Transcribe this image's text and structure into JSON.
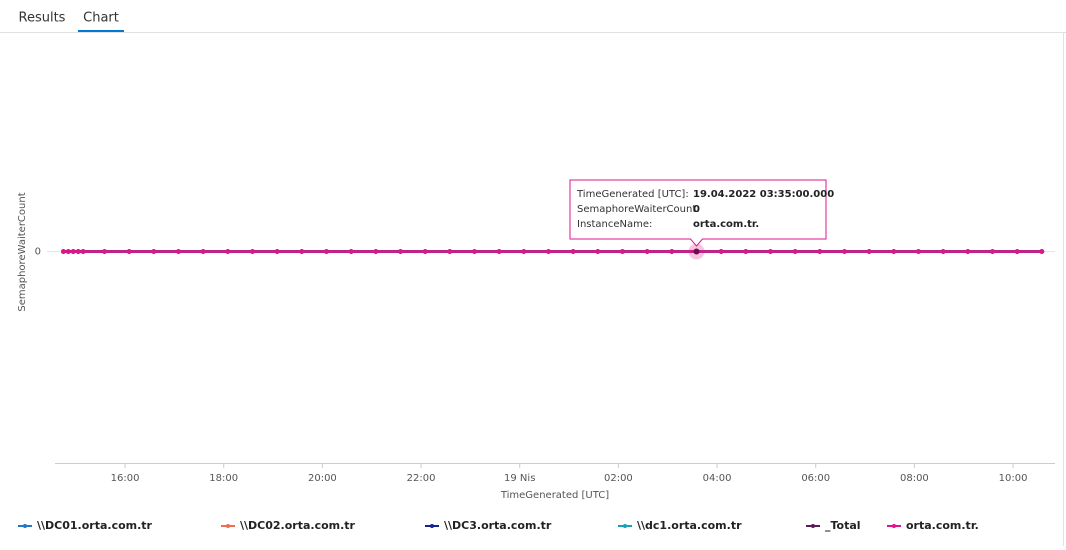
{
  "tabs": [
    "Results",
    "Chart"
  ],
  "chart_data": {
    "type": "line",
    "y_label": "SemaphoreWaiterCount",
    "x_label": "TimeGenerated [UTC]",
    "x": [
      14.75,
      14.85,
      14.95,
      15.05,
      15.15,
      15.583,
      16.083,
      16.583,
      17.083,
      17.583,
      18.083,
      18.583,
      19.083,
      19.583,
      20.083,
      20.583,
      21.083,
      21.583,
      22.083,
      22.583,
      23.083,
      23.583,
      24.083,
      24.583,
      25.083,
      25.583,
      26.083,
      26.583,
      27.083,
      27.583,
      28.083,
      28.583,
      29.083,
      29.583,
      30.083,
      30.583,
      31.083,
      31.583,
      32.083,
      32.583,
      33.083,
      33.583,
      34.083,
      34.583
    ],
    "xlim": [
      14.58,
      34.85
    ],
    "xticks": [
      {
        "value": 16,
        "label": "16:00"
      },
      {
        "value": 18,
        "label": "18:00"
      },
      {
        "value": 20,
        "label": "20:00"
      },
      {
        "value": 22,
        "label": "22:00"
      },
      {
        "value": 24,
        "label": "19 Nis"
      },
      {
        "value": 26,
        "label": "02:00"
      },
      {
        "value": 28,
        "label": "04:00"
      },
      {
        "value": 30,
        "label": "06:00"
      },
      {
        "value": 32,
        "label": "08:00"
      },
      {
        "value": 34,
        "label": "10:00"
      }
    ],
    "ylim": [
      -1,
      1
    ],
    "yticks": [
      0
    ],
    "series": [
      {
        "name": "\\\\DC01.orta.com.tr",
        "color": "#1f78c8",
        "values": [
          0,
          0,
          0,
          0,
          0,
          0,
          0,
          0,
          0,
          0,
          0,
          0,
          0,
          0,
          0,
          0,
          0,
          0,
          0,
          0,
          0,
          0,
          0,
          0,
          0,
          0,
          0,
          0,
          0,
          0,
          0,
          0,
          0,
          0,
          0,
          0,
          0,
          0,
          0,
          0,
          0,
          0,
          0,
          0
        ]
      },
      {
        "name": "\\\\DC02.orta.com.tr",
        "color": "#f06b50",
        "values": [
          0,
          0,
          0,
          0,
          0,
          0,
          0,
          0,
          0,
          0,
          0,
          0,
          0,
          0,
          0,
          0,
          0,
          0,
          0,
          0,
          0,
          0,
          0,
          0,
          0,
          0,
          0,
          0,
          0,
          0,
          0,
          0,
          0,
          0,
          0,
          0,
          0,
          0,
          0,
          0,
          0,
          0,
          0,
          0
        ]
      },
      {
        "name": "\\\\DC3.orta.com.tr",
        "color": "#12238a",
        "values": [
          0,
          0,
          0,
          0,
          0,
          0,
          0,
          0,
          0,
          0,
          0,
          0,
          0,
          0,
          0,
          0,
          0,
          0,
          0,
          0,
          0,
          0,
          0,
          0,
          0,
          0,
          0,
          0,
          0,
          0,
          0,
          0,
          0,
          0,
          0,
          0,
          0,
          0,
          0,
          0,
          0,
          0,
          0,
          0
        ]
      },
      {
        "name": "\\\\dc1.orta.com.tr",
        "color": "#13a3b5",
        "values": [
          0,
          0,
          0,
          0,
          0,
          0,
          0,
          0,
          0,
          0,
          0,
          0,
          0,
          0,
          0,
          0,
          0,
          0,
          0,
          0,
          0,
          0,
          0,
          0,
          0,
          0,
          0,
          0,
          0,
          0,
          0,
          0,
          0,
          0,
          0,
          0,
          0,
          0,
          0,
          0,
          0,
          0,
          0,
          0
        ]
      },
      {
        "name": "_Total",
        "color": "#5c1a5c",
        "values": [
          0,
          0,
          0,
          0,
          0,
          0,
          0,
          0,
          0,
          0,
          0,
          0,
          0,
          0,
          0,
          0,
          0,
          0,
          0,
          0,
          0,
          0,
          0,
          0,
          0,
          0,
          0,
          0,
          0,
          0,
          0,
          0,
          0,
          0,
          0,
          0,
          0,
          0,
          0,
          0,
          0,
          0,
          0,
          0
        ]
      },
      {
        "name": "orta.com.tr.",
        "color": "#e0148c",
        "values": [
          0,
          0,
          0,
          0,
          0,
          0,
          0,
          0,
          0,
          0,
          0,
          0,
          0,
          0,
          0,
          0,
          0,
          0,
          0,
          0,
          0,
          0,
          0,
          0,
          0,
          0,
          0,
          0,
          0,
          0,
          0,
          0,
          0,
          0,
          0,
          0,
          0,
          0,
          0,
          0,
          0,
          0,
          0,
          0
        ]
      }
    ],
    "tooltip": {
      "rows": [
        {
          "label": "TimeGenerated [UTC]:",
          "value": "19.04.2022 03:35:00.000"
        },
        {
          "label": "SemaphoreWaiterCount:",
          "value": "0"
        },
        {
          "label": "InstanceName:",
          "value": "orta.com.tr."
        }
      ]
    }
  }
}
